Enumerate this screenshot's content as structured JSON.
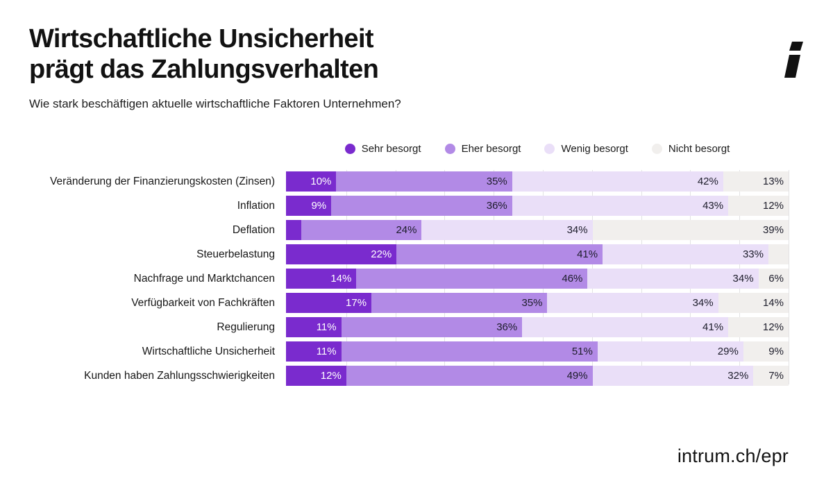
{
  "header": {
    "title_line1": "Wirtschaftliche Unsicherheit",
    "title_line2": "prägt das Zahlungsverhalten",
    "subtitle": "Wie stark beschäftigen aktuelle wirtschaftliche Faktoren Unternehmen?"
  },
  "footer": {
    "url": "intrum.ch/epr"
  },
  "brand": {
    "logo": "intrum-i-logo",
    "color": "#111111"
  },
  "chart_data": {
    "type": "bar",
    "variant": "horizontal-stacked-100",
    "title": "Wie stark beschäftigen aktuelle wirtschaftliche Faktoren Unternehmen?",
    "xlabel": "",
    "ylabel": "",
    "xmax": 100,
    "grid": true,
    "grid_step": 10,
    "min_label_value": 5,
    "legend_position": "top-center",
    "categories": [
      "Veränderung der Finanzierungskosten (Zinsen)",
      "Inflation",
      "Deflation",
      "Steuerbelastung",
      "Nachfrage und Marktchancen",
      "Verfügbarkeit von Fachkräften",
      "Regulierung",
      "Wirtschaftliche Unsicherheit",
      "Kunden haben Zahlungsschwierigkeiten"
    ],
    "series": [
      {
        "name": "Sehr besorgt",
        "color": "#7a2bce",
        "label_color": "#ffffff",
        "values": [
          10,
          9,
          3,
          22,
          14,
          17,
          11,
          11,
          12
        ]
      },
      {
        "name": "Eher besorgt",
        "color": "#b28ae6",
        "label_color": "#1c1c2a",
        "values": [
          35,
          36,
          24,
          41,
          46,
          35,
          36,
          51,
          49
        ]
      },
      {
        "name": "Wenig besorgt",
        "color": "#eadff8",
        "label_color": "#1c1c2a",
        "values": [
          42,
          43,
          34,
          33,
          34,
          34,
          41,
          29,
          32
        ]
      },
      {
        "name": "Nicht besorgt",
        "color": "#f1efed",
        "label_color": "#1c1c2a",
        "values": [
          13,
          12,
          39,
          4,
          6,
          14,
          12,
          9,
          7
        ]
      }
    ]
  }
}
